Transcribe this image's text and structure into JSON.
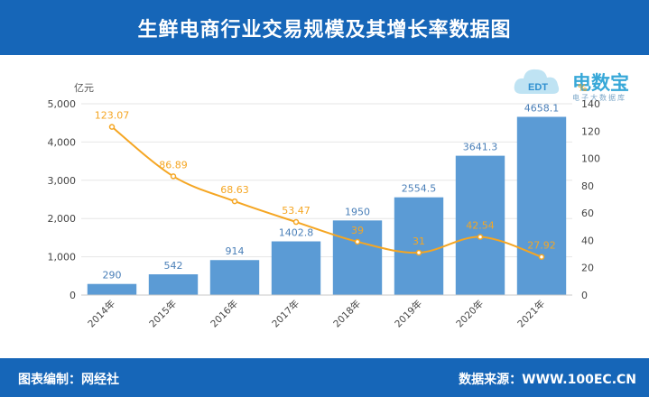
{
  "header": {
    "title": "生鲜电商行业交易规模及其增长率数据图"
  },
  "footer": {
    "left": "图表编制：网经社",
    "right": "数据来源：WWW.100EC.CN"
  },
  "logo": {
    "main": "电数宝",
    "sub": "电子大数据库",
    "badge": "EDT"
  },
  "colors": {
    "bar": "#5b9bd5",
    "line": "#f5a623",
    "header": "#1666b8"
  },
  "chart_data": {
    "type": "bar",
    "categories": [
      "2014年",
      "2015年",
      "2016年",
      "2017年",
      "2018年",
      "2019年",
      "2020年",
      "2021年"
    ],
    "series": [
      {
        "values": [
          290,
          542,
          914,
          1402.8,
          1950,
          2554.5,
          3641.3,
          4658.1
        ],
        "labels": [
          "290",
          "542",
          "914",
          "1402.8",
          "1950",
          "2554.5",
          "3641.3",
          "4658.1"
        ],
        "axis": "left",
        "kind": "bar"
      },
      {
        "values": [
          123.07,
          86.89,
          68.63,
          53.47,
          39,
          31,
          42.54,
          27.92
        ],
        "labels": [
          "123.07",
          "86.89",
          "68.63",
          "53.47",
          "39",
          "31",
          "42.54",
          "27.92"
        ],
        "axis": "right",
        "kind": "line"
      }
    ],
    "ylabel": "亿元",
    "y2label": "%",
    "ylim": [
      0,
      5000
    ],
    "y2lim": [
      0,
      140
    ],
    "yticks": [
      "0",
      "1,000",
      "2,000",
      "3,000",
      "4,000",
      "5,000"
    ],
    "y2ticks": [
      "0",
      "20",
      "40",
      "60",
      "80",
      "100",
      "120",
      "140"
    ],
    "grid": true,
    "legend": "none"
  }
}
